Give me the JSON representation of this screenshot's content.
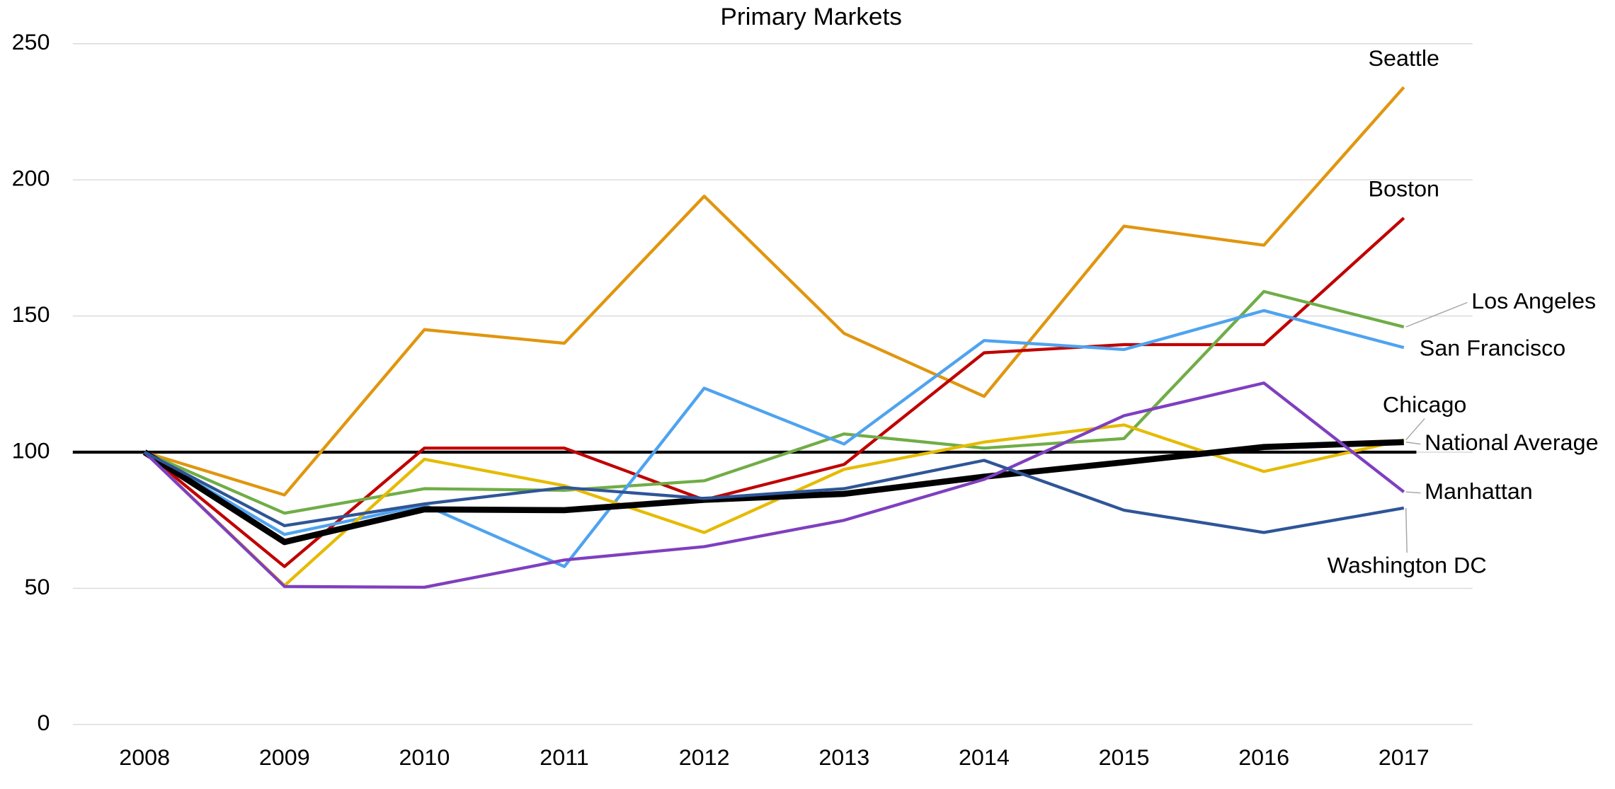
{
  "chart_data": {
    "type": "line",
    "title": "Primary Markets",
    "categories": [
      "2008",
      "2009",
      "2010",
      "2011",
      "2012",
      "2013",
      "2014",
      "2015",
      "2016",
      "2017"
    ],
    "series": [
      {
        "name": "Seattle",
        "color": "#e0960f",
        "values": [
          100,
          84.3,
          145,
          140,
          194,
          143.6,
          120.5,
          183,
          176,
          234
        ]
      },
      {
        "name": "Boston",
        "color": "#c00000",
        "values": [
          100,
          58,
          101.5,
          101.5,
          82.5,
          95.5,
          136.5,
          139.5,
          139.5,
          186
        ]
      },
      {
        "name": "Los Angeles",
        "color": "#70ad47",
        "values": [
          100,
          77.6,
          86.6,
          86,
          89.5,
          106.7,
          101.5,
          105,
          159,
          146
        ]
      },
      {
        "name": "San Francisco",
        "color": "#4ea3ef",
        "values": [
          100,
          69.8,
          80.6,
          58,
          123.5,
          103,
          141,
          137.7,
          152,
          138.4
        ]
      },
      {
        "name": "Chicago",
        "color": "#e5bb00",
        "values": [
          100,
          51,
          97.4,
          87.7,
          70.5,
          93.7,
          103.7,
          110,
          92.9,
          104.5
        ]
      },
      {
        "name": "National Average",
        "color": "#000000",
        "values": [
          100,
          67,
          79,
          78.7,
          82.5,
          84.7,
          91,
          96.3,
          101.9,
          103.7
        ]
      },
      {
        "name": "Manhattan",
        "color": "#7f3fbf",
        "values": [
          100,
          50.7,
          50.4,
          60.4,
          65.3,
          75,
          90,
          113.4,
          125.4,
          85.4
        ]
      },
      {
        "name": "Washington DC",
        "color": "#2f5597",
        "values": [
          100,
          73,
          81,
          87,
          83,
          86.6,
          97,
          78.7,
          70.5,
          79.5
        ]
      }
    ],
    "reference_line": 100,
    "ylim": [
      0,
      250
    ],
    "yticks": [
      0,
      50,
      100,
      150,
      200,
      250
    ],
    "grid": true
  }
}
